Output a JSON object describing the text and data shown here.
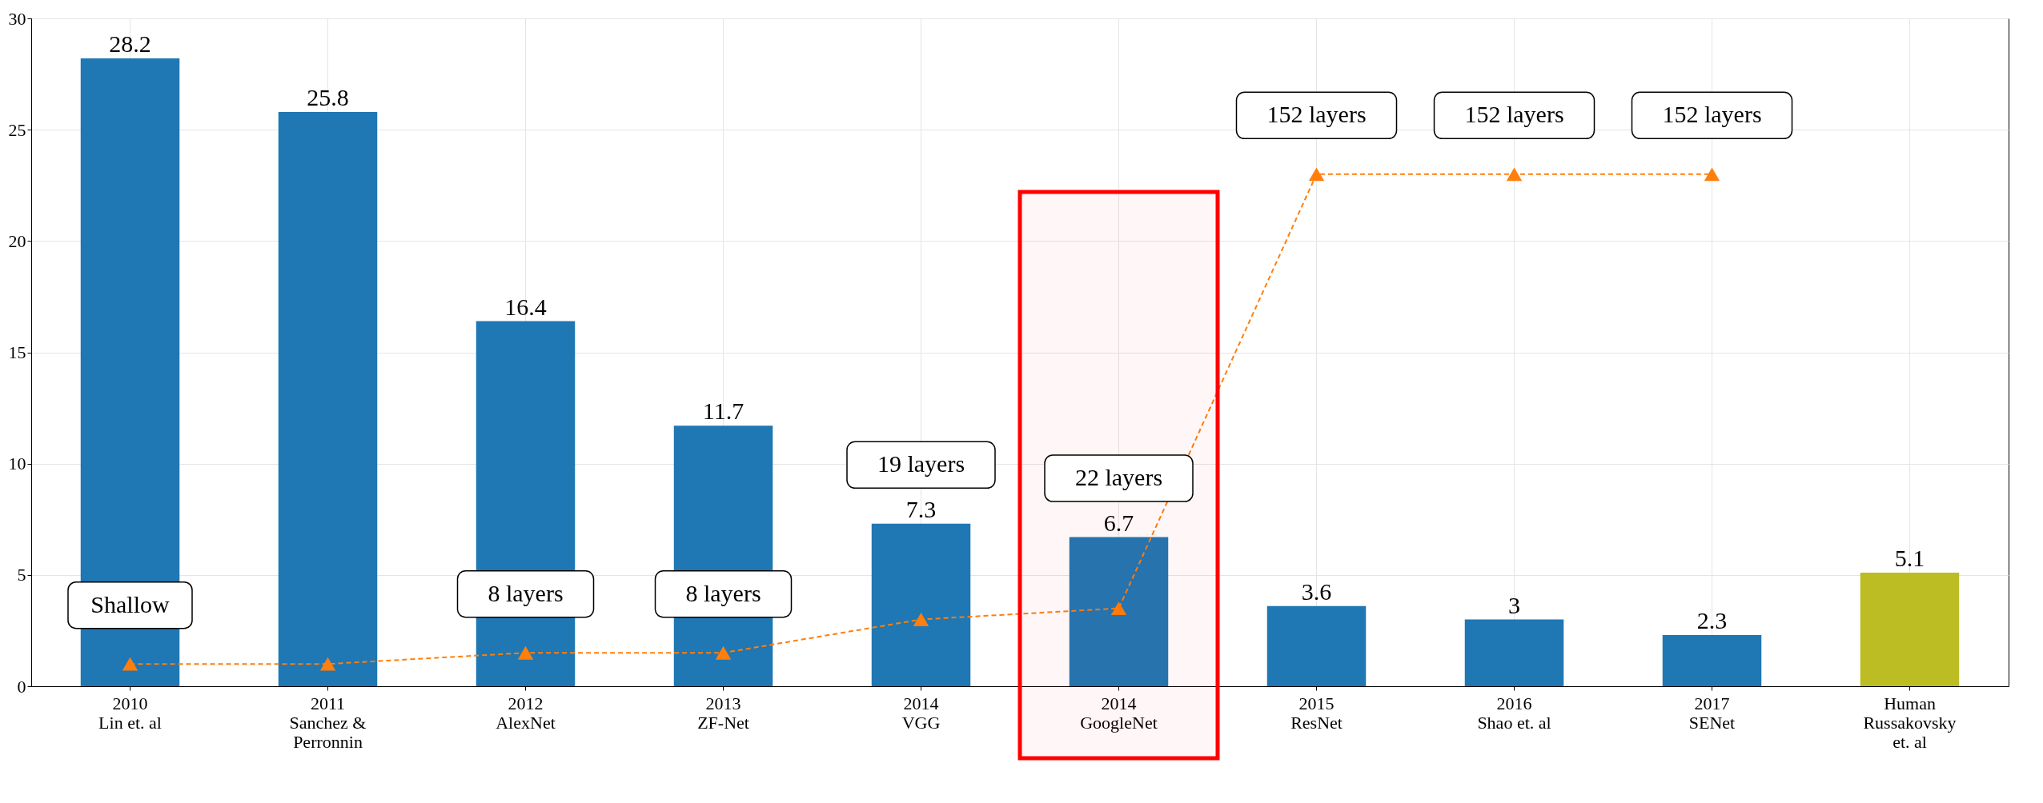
{
  "chart_data": {
    "type": "bar",
    "categories": [
      "2010\nLin et. al",
      "2011\nSanchez &\nPerronnin",
      "2012\nAlexNet",
      "2013\nZF-Net",
      "2014\nVGG",
      "2014\nGoogleNet",
      "2015\nResNet",
      "2016\nShao et. al",
      "2017\nSENet",
      "Human\nRussakovsky\net. al"
    ],
    "series": [
      {
        "colors": [
          "#1f77b4",
          "#1f77b4",
          "#1f77b4",
          "#1f77b4",
          "#1f77b4",
          "#1f77b4",
          "#1f77b4",
          "#1f77b4",
          "#1f77b4",
          "#bcbd22"
        ],
        "values": [
          28.2,
          25.8,
          16.4,
          11.7,
          7.3,
          6.7,
          3.6,
          3,
          2.3,
          5.1
        ],
        "value_labels": [
          "28.2",
          "25.8",
          "16.4",
          "11.7",
          "7.3",
          "6.7",
          "3.6",
          "3",
          "2.3",
          "5.1"
        ]
      },
      {
        "type": "line",
        "color": "#ff7f0e",
        "marker": "triangle",
        "line_style": "dashed",
        "values": [
          1,
          1,
          1.5,
          1.5,
          3,
          3.5,
          23,
          23,
          23,
          null
        ]
      }
    ],
    "ylim": [
      0,
      30
    ],
    "yticks": [
      0,
      5,
      10,
      15,
      20,
      25,
      30
    ],
    "grid": true,
    "bands": [
      {
        "axis": "x",
        "from": "2014\nGoogleNet",
        "to": "2014\nGoogleNet",
        "color": "#ff0000"
      }
    ],
    "annotations": [
      {
        "text": "Shallow",
        "x": "2010\nLin et. al",
        "y": 1
      },
      {
        "text": "8 layers",
        "x": "2012\nAlexNet",
        "y": 1.5
      },
      {
        "text": "8 layers",
        "x": "2013\nZF-Net",
        "y": 1.5
      },
      {
        "text": "19 layers",
        "x": "2014\nVGG",
        "y": 7.3
      },
      {
        "text": "22 layers",
        "x": "2014\nGoogleNet",
        "y": 6.7
      },
      {
        "text": "152 layers",
        "x": "2015\nResNet",
        "y": 23
      },
      {
        "text": "152 layers",
        "x": "2016\nShao et. al",
        "y": 23
      },
      {
        "text": "152 layers",
        "x": "2017\nSENet",
        "y": 23
      }
    ]
  }
}
